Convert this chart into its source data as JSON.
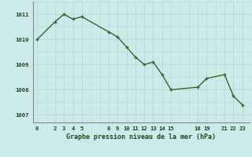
{
  "x": [
    0,
    2,
    3,
    4,
    5,
    8,
    9,
    10,
    11,
    12,
    13,
    14,
    15,
    18,
    19,
    21,
    22,
    23
  ],
  "y": [
    1010.0,
    1010.7,
    1011.0,
    1010.8,
    1010.9,
    1010.3,
    1010.1,
    1009.7,
    1009.3,
    1009.0,
    1009.1,
    1008.6,
    1008.0,
    1008.1,
    1008.45,
    1008.6,
    1007.75,
    1007.4
  ],
  "xticks": [
    0,
    2,
    3,
    4,
    5,
    8,
    9,
    10,
    11,
    12,
    13,
    14,
    15,
    18,
    19,
    21,
    22,
    23
  ],
  "yticks": [
    1007,
    1008,
    1009,
    1010,
    1011
  ],
  "ylim": [
    1006.7,
    1011.5
  ],
  "xlim": [
    -0.5,
    23.8
  ],
  "xlabel": "Graphe pression niveau de la mer (hPa)",
  "line_color": "#2d6a2d",
  "marker_color": "#2d6a2d",
  "bg_color": "#cceaea",
  "grid_color": "#b8d8d8",
  "font_color": "#1a4a1a"
}
